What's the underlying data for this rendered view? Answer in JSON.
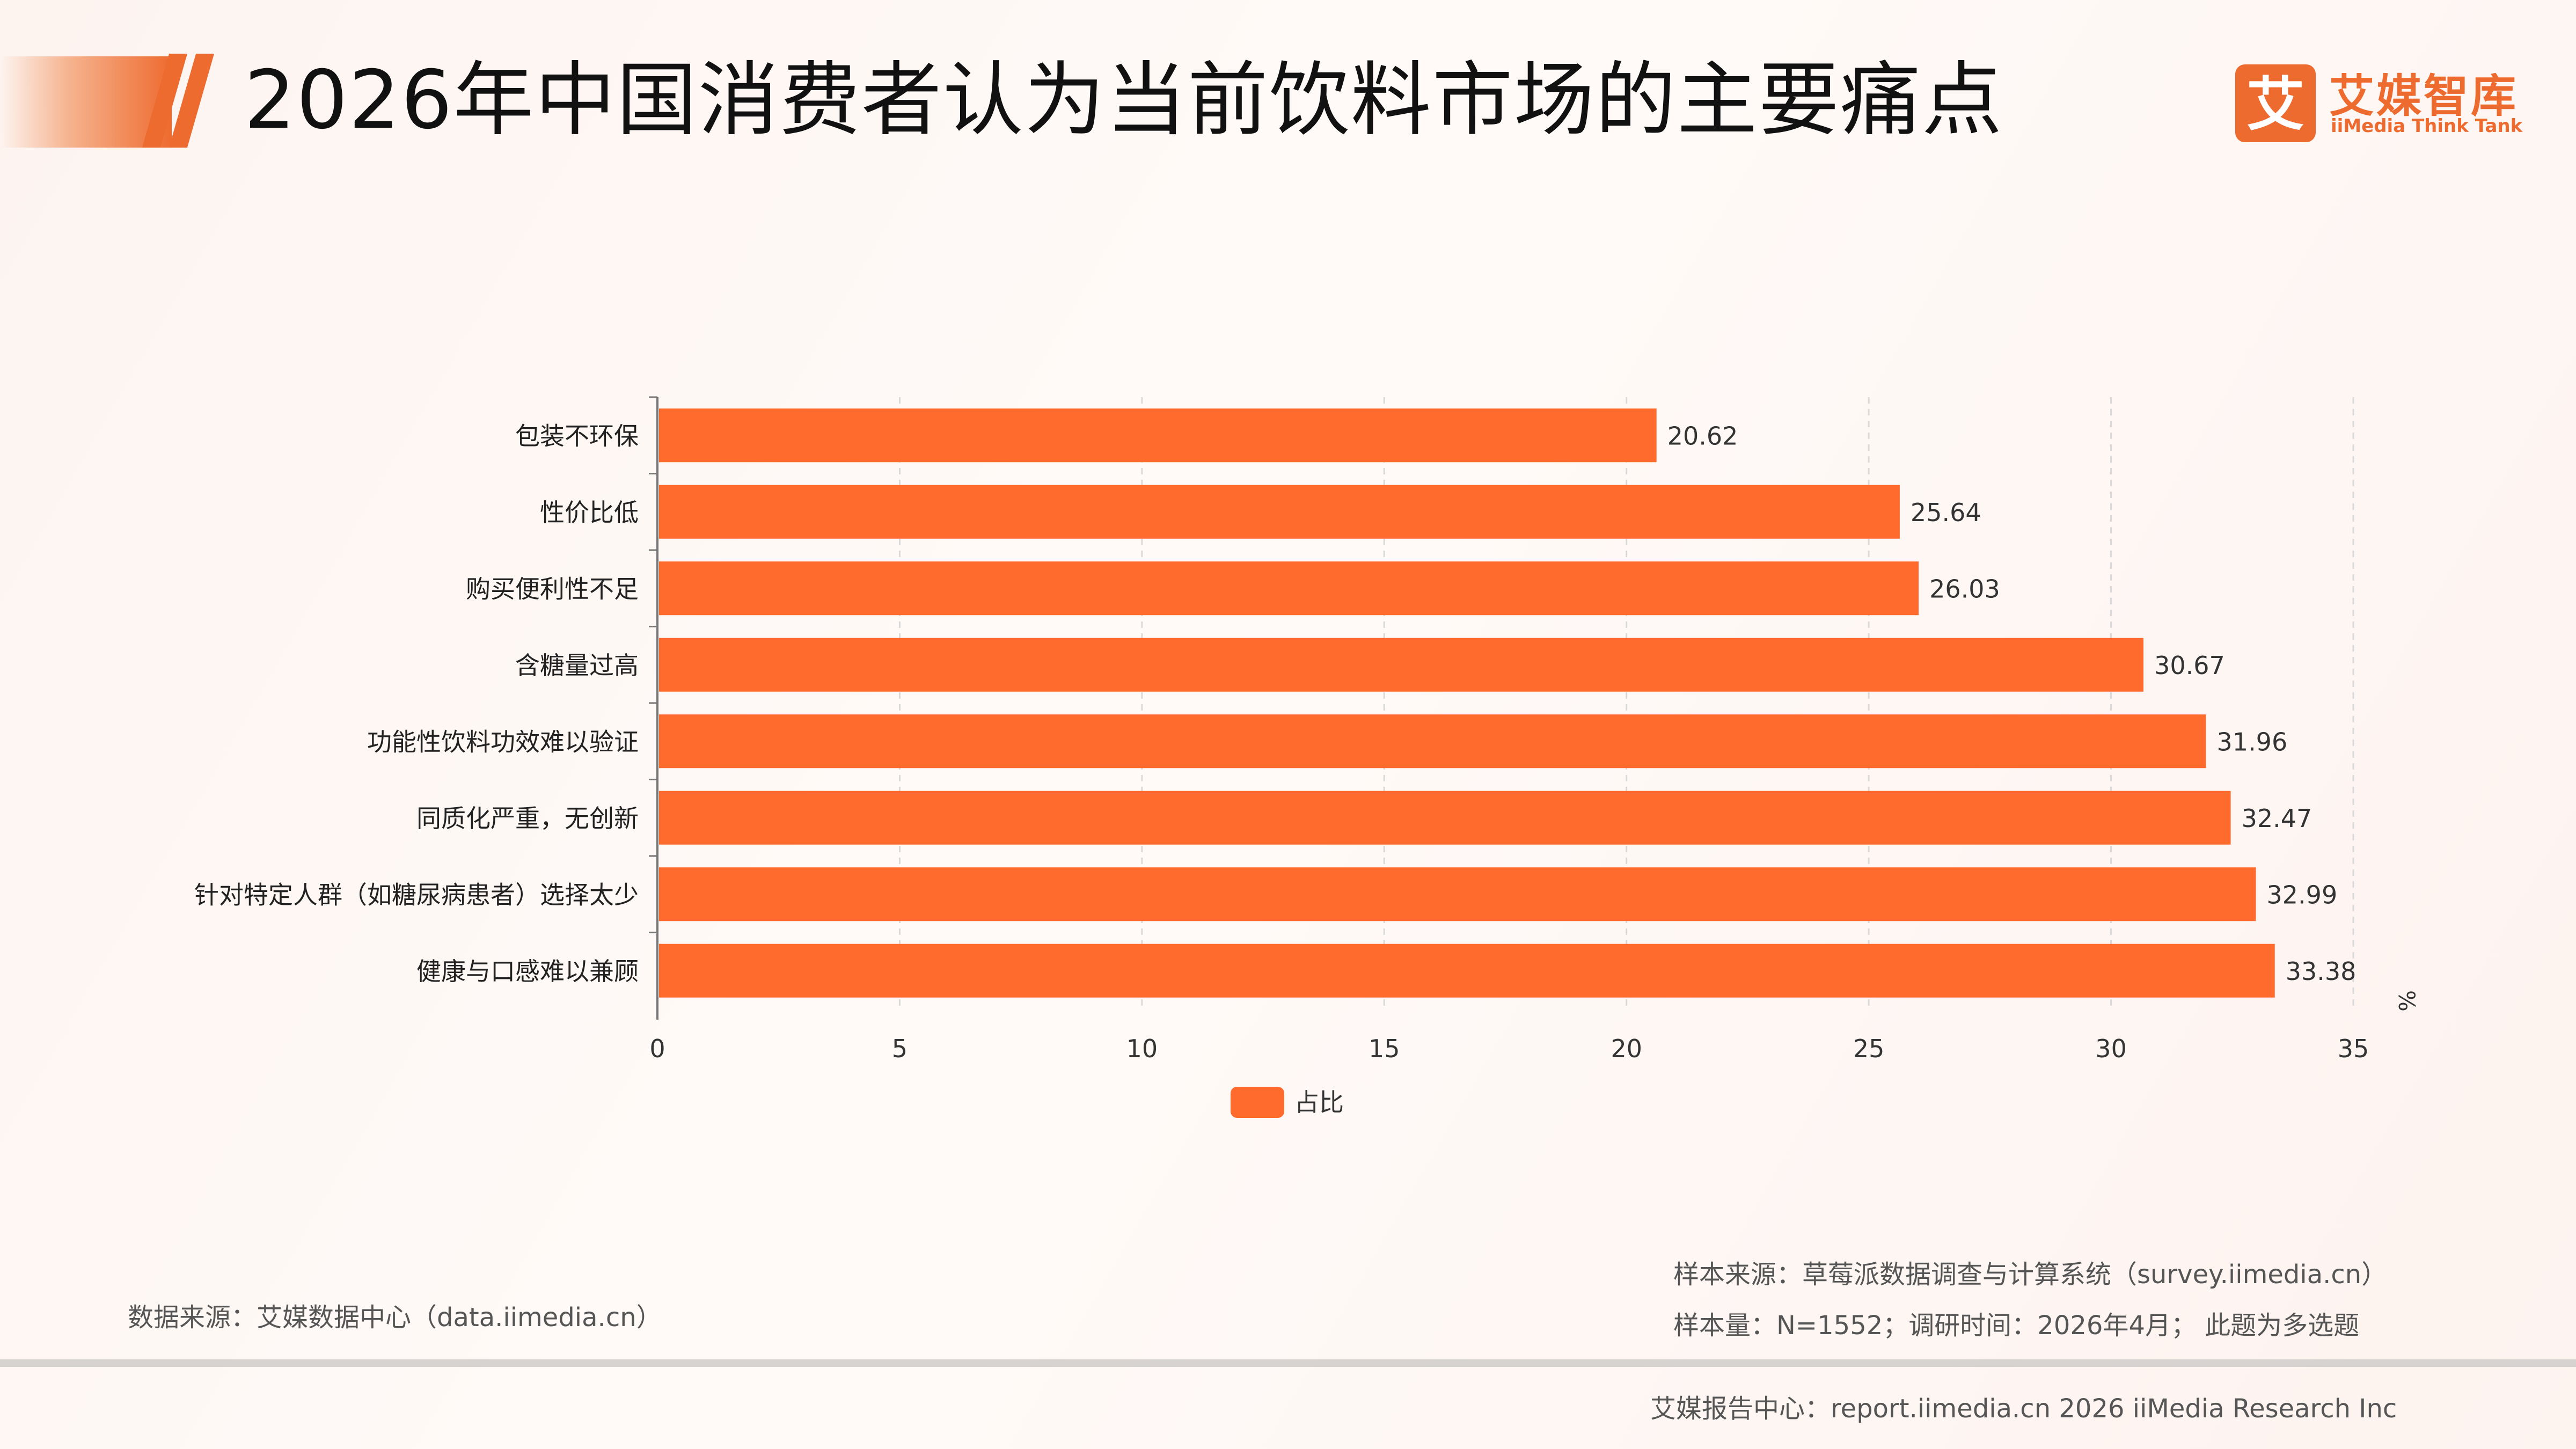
{
  "header": {
    "title": "2026年中国消费者认为当前饮料市场的主要痛点",
    "logo_cn": "艾媒智库",
    "logo_en": "iiMedia Think Tank",
    "logo_glyph": "艾"
  },
  "colors": {
    "accent": "#ee6b2f",
    "bar": "#ff6b2c",
    "axis": "#777777",
    "grid": "#d9d9d9"
  },
  "chart_data": {
    "type": "bar",
    "orientation": "horizontal",
    "categories": [
      "包装不环保",
      "性价比低",
      "购买便利性不足",
      "含糖量过高",
      "功能性饮料功效难以验证",
      "同质化严重，无创新",
      "针对特定人群（如糖尿病患者）选择太少",
      "健康与口感难以兼顾"
    ],
    "series": [
      {
        "name": "占比",
        "values": [
          20.62,
          25.64,
          26.03,
          30.67,
          31.96,
          32.47,
          32.99,
          33.38
        ]
      }
    ],
    "xlim": [
      0,
      35
    ],
    "xticks": [
      0,
      5,
      10,
      15,
      20,
      25,
      30,
      35
    ],
    "unit": "%",
    "grid": "vertical dashed",
    "legend": "bottom-center"
  },
  "footer": {
    "data_source": "数据来源：艾媒数据中心（data.iimedia.cn）",
    "sample_source": "样本来源：草莓派数据调查与计算系统（survey.iimedia.cn）",
    "sample_size": "样本量：N=1552；调研时间：2026年4月；  此题为多选题",
    "report": "艾媒报告中心：report.iimedia.cn   2026 iiMedia Research Inc"
  }
}
